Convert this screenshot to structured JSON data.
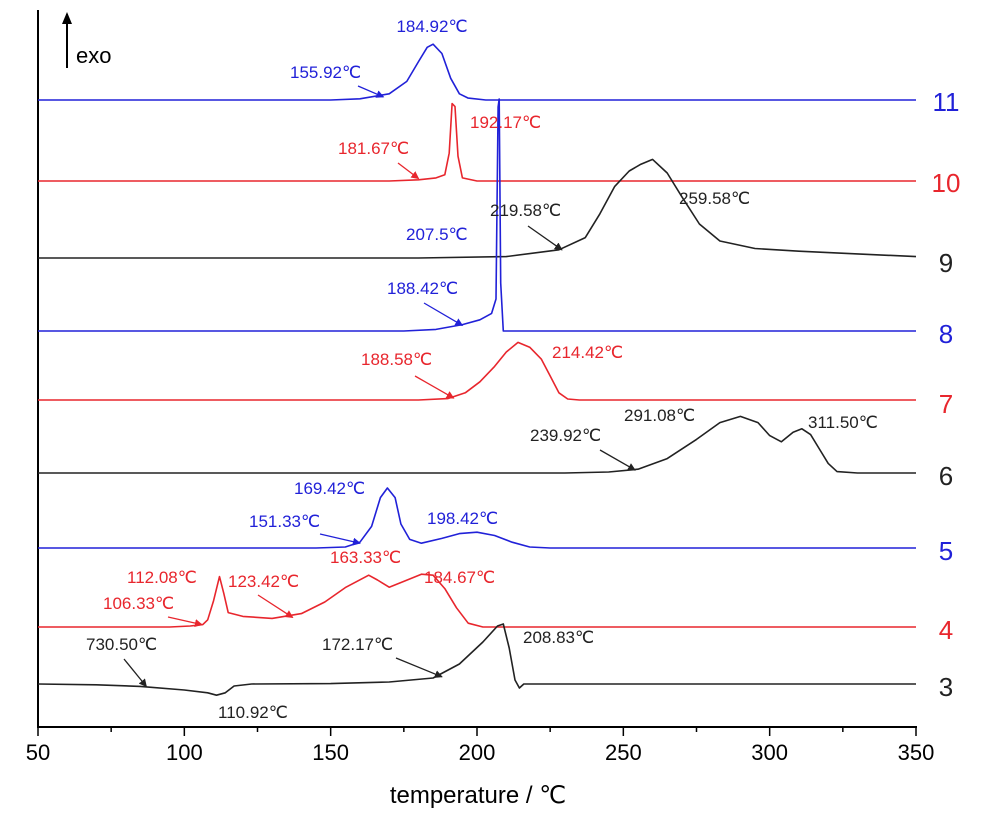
{
  "chart_data": {
    "type": "line",
    "title": "",
    "xlabel": "temperature / ℃",
    "ylabel": "",
    "xlim": [
      50,
      350
    ],
    "x_ticks": [
      50,
      100,
      150,
      200,
      250,
      300,
      350
    ],
    "y_axis_marker": "exo",
    "grid": false,
    "legend": "curve numbers at right end of each trace",
    "colors": {
      "black": "#222222",
      "red": "#e8262d",
      "blue": "#2121d8"
    },
    "series": [
      {
        "name": "11",
        "color": "blue",
        "points": [
          [
            50,
            0
          ],
          [
            150,
            0
          ],
          [
            160,
            0.02
          ],
          [
            170,
            0.1
          ],
          [
            176,
            0.3
          ],
          [
            180,
            0.62
          ],
          [
            183,
            0.85
          ],
          [
            185,
            0.9
          ],
          [
            188,
            0.75
          ],
          [
            191,
            0.35
          ],
          [
            194,
            0.1
          ],
          [
            197,
            0.03
          ],
          [
            203,
            0
          ],
          [
            350,
            0
          ]
        ],
        "annotations": [
          {
            "text": "184.92℃",
            "arrow": false
          },
          {
            "text": "155.92℃",
            "arrow": true,
            "target": [
              168,
              0.05
            ]
          }
        ]
      },
      {
        "name": "10",
        "color": "red",
        "points": [
          [
            50,
            0
          ],
          [
            170,
            0
          ],
          [
            180,
            0.02
          ],
          [
            186,
            0.05
          ],
          [
            189,
            0.1
          ],
          [
            190.5,
            0.45
          ],
          [
            191.5,
            1.25
          ],
          [
            192.5,
            1.2
          ],
          [
            193.5,
            0.4
          ],
          [
            195,
            0.05
          ],
          [
            200,
            0
          ],
          [
            350,
            0
          ]
        ],
        "annotations": [
          {
            "text": "192.17℃",
            "arrow": false
          },
          {
            "text": "181.67℃",
            "arrow": true,
            "target": [
              180,
              0.04
            ]
          }
        ]
      },
      {
        "name": "9",
        "color": "black",
        "points": [
          [
            50,
            0
          ],
          [
            180,
            0
          ],
          [
            210,
            0.02
          ],
          [
            228,
            0.12
          ],
          [
            237,
            0.3
          ],
          [
            242,
            0.65
          ],
          [
            247,
            1.05
          ],
          [
            252,
            1.28
          ],
          [
            256,
            1.38
          ],
          [
            260,
            1.45
          ],
          [
            265,
            1.25
          ],
          [
            270,
            0.9
          ],
          [
            276,
            0.5
          ],
          [
            283,
            0.25
          ],
          [
            295,
            0.14
          ],
          [
            310,
            0.1
          ],
          [
            330,
            0.06
          ],
          [
            350,
            0.02
          ]
        ],
        "annotations": [
          {
            "text": "259.58℃",
            "arrow": false
          },
          {
            "text": "219.58℃",
            "arrow": true,
            "target": [
              229,
              0.12
            ]
          }
        ]
      },
      {
        "name": "8",
        "color": "blue",
        "points": [
          [
            50,
            0
          ],
          [
            175,
            0
          ],
          [
            186,
            0.02
          ],
          [
            195,
            0.08
          ],
          [
            201,
            0.14
          ],
          [
            205,
            0.22
          ],
          [
            206.5,
            0.4
          ],
          [
            207.2,
            2.8
          ],
          [
            207.6,
            2.9
          ],
          [
            208.1,
            0.6
          ],
          [
            209,
            0
          ],
          [
            350,
            0
          ]
        ],
        "annotations": [
          {
            "text": "207.5℃",
            "arrow": false
          },
          {
            "text": "188.42℃",
            "arrow": true,
            "target": [
              195,
              0.07
            ]
          }
        ]
      },
      {
        "name": "7",
        "color": "red",
        "points": [
          [
            50,
            0
          ],
          [
            180,
            0
          ],
          [
            190,
            0.03
          ],
          [
            196,
            0.15
          ],
          [
            201,
            0.38
          ],
          [
            206,
            0.7
          ],
          [
            210,
            1.0
          ],
          [
            214,
            1.2
          ],
          [
            218,
            1.1
          ],
          [
            222,
            0.85
          ],
          [
            225,
            0.5
          ],
          [
            228,
            0.15
          ],
          [
            231,
            0.02
          ],
          [
            235,
            0
          ],
          [
            350,
            0
          ]
        ],
        "annotations": [
          {
            "text": "214.42℃",
            "arrow": false
          },
          {
            "text": "188.58℃",
            "arrow": true,
            "target": [
              192,
              0.04
            ]
          }
        ]
      },
      {
        "name": "6",
        "color": "black",
        "points": [
          [
            50,
            0
          ],
          [
            230,
            0
          ],
          [
            245,
            0.02
          ],
          [
            255,
            0.08
          ],
          [
            265,
            0.3
          ],
          [
            275,
            0.7
          ],
          [
            283,
            1.05
          ],
          [
            290,
            1.18
          ],
          [
            296,
            1.05
          ],
          [
            300,
            0.78
          ],
          [
            304,
            0.65
          ],
          [
            308,
            0.85
          ],
          [
            311,
            0.92
          ],
          [
            314,
            0.8
          ],
          [
            317,
            0.5
          ],
          [
            320,
            0.2
          ],
          [
            323,
            0.03
          ],
          [
            330,
            0
          ],
          [
            350,
            0
          ]
        ],
        "annotations": [
          {
            "text": "311.50℃",
            "arrow": false
          },
          {
            "text": "291.08℃",
            "arrow": false
          },
          {
            "text": "239.92℃",
            "arrow": true,
            "target": [
              254,
              0.06
            ]
          }
        ]
      },
      {
        "name": "5",
        "color": "blue",
        "points": [
          [
            50,
            0
          ],
          [
            145,
            0
          ],
          [
            155,
            0.02
          ],
          [
            160,
            0.12
          ],
          [
            164,
            0.45
          ],
          [
            167,
            1.05
          ],
          [
            169.4,
            1.25
          ],
          [
            172,
            1.05
          ],
          [
            174,
            0.5
          ],
          [
            177,
            0.18
          ],
          [
            181,
            0.1
          ],
          [
            188,
            0.2
          ],
          [
            194,
            0.3
          ],
          [
            200,
            0.33
          ],
          [
            206,
            0.26
          ],
          [
            212,
            0.12
          ],
          [
            218,
            0.02
          ],
          [
            225,
            0
          ],
          [
            350,
            0
          ]
        ],
        "annotations": [
          {
            "text": "169.42℃",
            "arrow": false
          },
          {
            "text": "151.33℃",
            "arrow": true,
            "target": [
              160,
              0.1
            ]
          },
          {
            "text": "198.42℃",
            "arrow": false
          }
        ]
      },
      {
        "name": "4",
        "color": "red",
        "points": [
          [
            50,
            0
          ],
          [
            95,
            0
          ],
          [
            102,
            0.02
          ],
          [
            106.3,
            0.05
          ],
          [
            108,
            0.15
          ],
          [
            110,
            0.55
          ],
          [
            112,
            1.05
          ],
          [
            113.5,
            0.7
          ],
          [
            115,
            0.3
          ],
          [
            120,
            0.22
          ],
          [
            130,
            0.18
          ],
          [
            140,
            0.28
          ],
          [
            148,
            0.52
          ],
          [
            155,
            0.82
          ],
          [
            163,
            1.08
          ],
          [
            166,
            0.98
          ],
          [
            170,
            0.83
          ],
          [
            175,
            0.95
          ],
          [
            181,
            1.1
          ],
          [
            185,
            1.08
          ],
          [
            189,
            0.8
          ],
          [
            193,
            0.4
          ],
          [
            197,
            0.08
          ],
          [
            202,
            0
          ],
          [
            350,
            0
          ]
        ],
        "annotations": [
          {
            "text": "112.08℃",
            "arrow": false
          },
          {
            "text": "106.33℃",
            "arrow": true,
            "target": [
              106,
              0.05
            ]
          },
          {
            "text": "123.42℃",
            "arrow": true,
            "target": [
              137,
              0.2
            ]
          },
          {
            "text": "163.33℃",
            "arrow": false
          },
          {
            "text": "184.67℃",
            "arrow": false
          }
        ]
      },
      {
        "name": "3",
        "color": "black",
        "points": [
          [
            50,
            0
          ],
          [
            70,
            -0.02
          ],
          [
            85,
            -0.06
          ],
          [
            100,
            -0.15
          ],
          [
            108,
            -0.22
          ],
          [
            111,
            -0.28
          ],
          [
            114,
            -0.22
          ],
          [
            117,
            -0.05
          ],
          [
            123,
            0
          ],
          [
            150,
            0.01
          ],
          [
            170,
            0.05
          ],
          [
            185,
            0.15
          ],
          [
            194,
            0.5
          ],
          [
            202,
            1.05
          ],
          [
            207,
            1.45
          ],
          [
            209,
            1.5
          ],
          [
            211,
            0.9
          ],
          [
            213,
            0.1
          ],
          [
            214.5,
            -0.1
          ],
          [
            216,
            0
          ],
          [
            350,
            0
          ]
        ],
        "annotations": [
          {
            "text": "730.50℃",
            "arrow": true,
            "target": [
              87,
              -0.06
            ]
          },
          {
            "text": "110.92℃",
            "arrow": false
          },
          {
            "text": "172.17℃",
            "arrow": true,
            "target": [
              188,
              0.18
            ]
          },
          {
            "text": "208.83℃",
            "arrow": false
          }
        ]
      }
    ]
  }
}
